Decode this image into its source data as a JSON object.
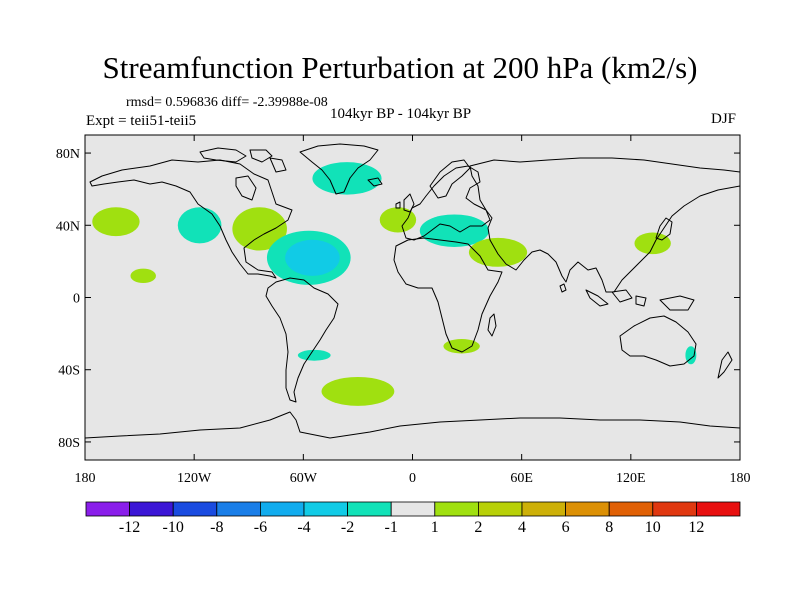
{
  "header": {
    "title": "Streamfunction Perturbation at 200 hPa (km2/s)",
    "stats": "rmsd= 0.596836 diff= -2.39988e-08",
    "experiment": "Expt = teii51-teii5",
    "period": "104kyr BP - 104kyr BP",
    "season": "DJF"
  },
  "map": {
    "projection": "cylindrical-equidistant",
    "lon_range": [
      -180,
      180
    ],
    "lat_range": [
      -90,
      90
    ],
    "background": "#e6e6e6",
    "y_ticks": [
      {
        "lat": 80,
        "label": "80N"
      },
      {
        "lat": 40,
        "label": "40N"
      },
      {
        "lat": 0,
        "label": "0"
      },
      {
        "lat": -40,
        "label": "40S"
      },
      {
        "lat": -80,
        "label": "80S"
      }
    ],
    "x_ticks": [
      {
        "lon": -180,
        "label": "180"
      },
      {
        "lon": -120,
        "label": "120W"
      },
      {
        "lon": -60,
        "label": "60W"
      },
      {
        "lon": 0,
        "label": "0"
      },
      {
        "lon": 60,
        "label": "60E"
      },
      {
        "lon": 120,
        "label": "120E"
      },
      {
        "lon": 180,
        "label": "180"
      }
    ]
  },
  "anomalies": [
    {
      "name": "north-pacific-positive",
      "lon": -163,
      "lat": 42,
      "rlon": 13,
      "rlat": 8,
      "level": "1-2"
    },
    {
      "name": "subtropical-pacific-positive",
      "lon": -148,
      "lat": 12,
      "rlon": 7,
      "rlat": 4,
      "level": "1-2"
    },
    {
      "name": "western-north-america-negative",
      "lon": -117,
      "lat": 40,
      "rlon": 12,
      "rlat": 10,
      "level": "-2--1"
    },
    {
      "name": "eastern-north-america-positive",
      "lon": -84,
      "lat": 38,
      "rlon": 15,
      "rlat": 12,
      "level": "1-2"
    },
    {
      "name": "atlantic-center-negative-outer",
      "lon": -57,
      "lat": 22,
      "rlon": 23,
      "rlat": 15,
      "level": "-2--1"
    },
    {
      "name": "atlantic-center-negative-inner",
      "lon": -55,
      "lat": 22,
      "rlon": 15,
      "rlat": 10,
      "level": "-4--2"
    },
    {
      "name": "greenland-negative",
      "lon": -36,
      "lat": 66,
      "rlon": 19,
      "rlat": 9,
      "level": "-2--1"
    },
    {
      "name": "eastern-atlantic-positive",
      "lon": -8,
      "lat": 43,
      "rlon": 10,
      "rlat": 7,
      "level": "1-2"
    },
    {
      "name": "mediterranean-negative",
      "lon": 23,
      "lat": 37,
      "rlon": 19,
      "rlat": 9,
      "level": "-2--1"
    },
    {
      "name": "middle-east-positive",
      "lon": 47,
      "lat": 25,
      "rlon": 16,
      "rlat": 8,
      "level": "1-2"
    },
    {
      "name": "east-asia-positive",
      "lon": 132,
      "lat": 30,
      "rlon": 10,
      "rlat": 6,
      "level": "1-2"
    },
    {
      "name": "south-america-negative",
      "lon": -54,
      "lat": -32,
      "rlon": 9,
      "rlat": 3,
      "level": "-2--1"
    },
    {
      "name": "south-africa-positive",
      "lon": 27,
      "lat": -27,
      "rlon": 10,
      "rlat": 4,
      "level": "1-2"
    },
    {
      "name": "australia-negative",
      "lon": 153,
      "lat": -32,
      "rlon": 3,
      "rlat": 5,
      "level": "-2--1"
    },
    {
      "name": "south-atlantic-positive",
      "lon": -30,
      "lat": -52,
      "rlon": 20,
      "rlat": 8,
      "level": "1-2"
    }
  ],
  "colorbar": {
    "colors": [
      "#8a1eea",
      "#3c16d6",
      "#1a4be0",
      "#1a7ee8",
      "#11acee",
      "#11cbe6",
      "#11e2b8",
      "#e6e6e6",
      "#a0e010",
      "#b8d008",
      "#cdb008",
      "#dc9005",
      "#e06005",
      "#e03810",
      "#e81010"
    ],
    "labels": [
      "-12",
      "-10",
      "-8",
      "-6",
      "-4",
      "-2",
      "-1",
      "1",
      "2",
      "4",
      "6",
      "8",
      "10",
      "12"
    ],
    "level_colors": {
      "-4--2": "#11cbe6",
      "-2--1": "#11e2b8",
      "1-2": "#a0e010"
    }
  }
}
